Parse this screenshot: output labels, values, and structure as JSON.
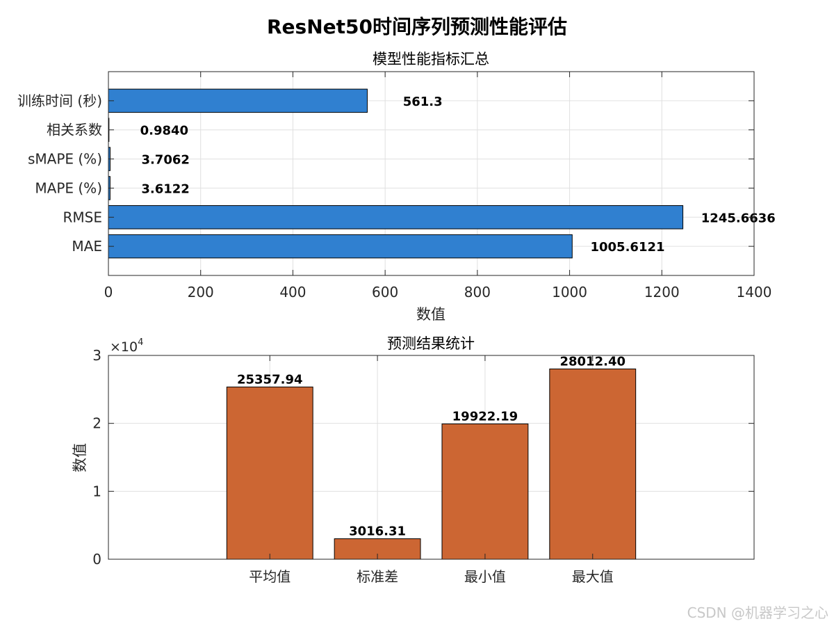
{
  "figure": {
    "title": "ResNet50时间序列预测性能评估"
  },
  "watermark": "CSDN @机器学习之心",
  "colors": {
    "bar_blue": "#3080d0",
    "bar_orange": "#cc6633",
    "grid": "#e0e0e0",
    "axis": "#262626"
  },
  "chart_data": [
    {
      "type": "bar",
      "orientation": "horizontal",
      "title": "模型性能指标汇总",
      "xlabel": "数值",
      "ylabel": "",
      "categories": [
        "MAE",
        "RMSE",
        "MAPE (%)",
        "sMAPE (%)",
        "相关系数",
        "训练时间 (秒)"
      ],
      "values": [
        1005.6121,
        1245.6636,
        3.6122,
        3.7062,
        0.984,
        561.3
      ],
      "value_labels": [
        "1005.6121",
        "1245.6636",
        "3.6122",
        "3.7062",
        "0.9840",
        "561.3"
      ],
      "xlim": [
        0,
        1400
      ],
      "xticks": [
        0,
        200,
        400,
        600,
        800,
        1000,
        1200,
        1400
      ],
      "grid": true
    },
    {
      "type": "bar",
      "orientation": "vertical",
      "title": "预测结果统计",
      "xlabel": "",
      "ylabel": "数值",
      "categories": [
        "平均值",
        "标准差",
        "最小值",
        "最大值"
      ],
      "values": [
        25357.94,
        3016.31,
        19922.19,
        28012.4
      ],
      "value_labels": [
        "25357.94",
        "3016.31",
        "19922.19",
        "28012.40"
      ],
      "ylim": [
        0,
        30000
      ],
      "yticks": [
        0,
        1,
        2,
        3
      ],
      "y_exponent_base": "10",
      "y_exponent_power": "4",
      "grid": true
    }
  ]
}
